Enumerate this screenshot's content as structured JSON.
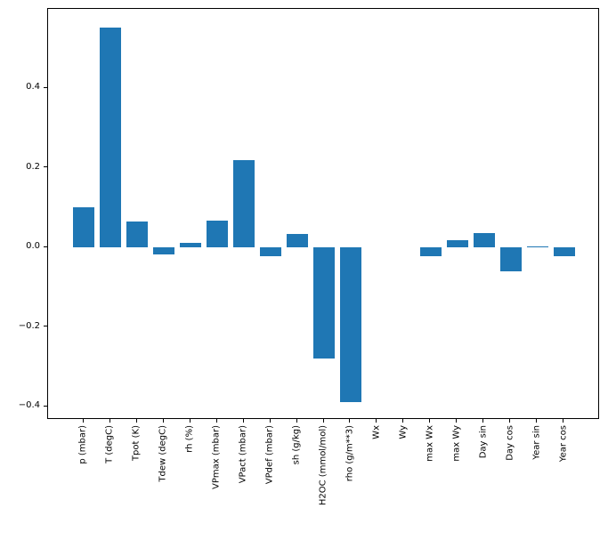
{
  "figure": {
    "background_color": "#ffffff",
    "spine_color": "#000000",
    "tick_color": "#000000"
  },
  "chart_data": {
    "type": "bar",
    "title": "",
    "xlabel": "",
    "ylabel": "",
    "legend": "none",
    "grid": false,
    "bar_color": "#1f77b4",
    "bar_width": 0.8,
    "x_tick_rotation": 90,
    "xlim": [
      -1.34,
      19.34
    ],
    "ylim": [
      -0.4335,
      0.599
    ],
    "yticks": [
      -0.4,
      -0.2,
      0.0,
      0.2,
      0.4
    ],
    "ytick_labels": [
      "−0.4",
      "−0.2",
      "0.0",
      "0.2",
      "0.4"
    ],
    "categories": [
      "p (mbar)",
      "T (degC)",
      "Tpot (K)",
      "Tdew (degC)",
      "rh (%)",
      "VPmax (mbar)",
      "VPact (mbar)",
      "VPdef (mbar)",
      "sh (g/kg)",
      "H2OC (mmol/mol)",
      "rho (g/m**3)",
      "Wx",
      "Wy",
      "max Wx",
      "max Wy",
      "Day sin",
      "Day cos",
      "Year sin",
      "Year cos"
    ],
    "values": [
      0.1,
      0.552,
      0.064,
      -0.018,
      0.012,
      0.068,
      0.22,
      -0.023,
      0.033,
      -0.279,
      -0.388,
      0.0,
      0.0,
      -0.022,
      0.018,
      0.036,
      -0.061,
      0.003,
      -0.022
    ]
  }
}
